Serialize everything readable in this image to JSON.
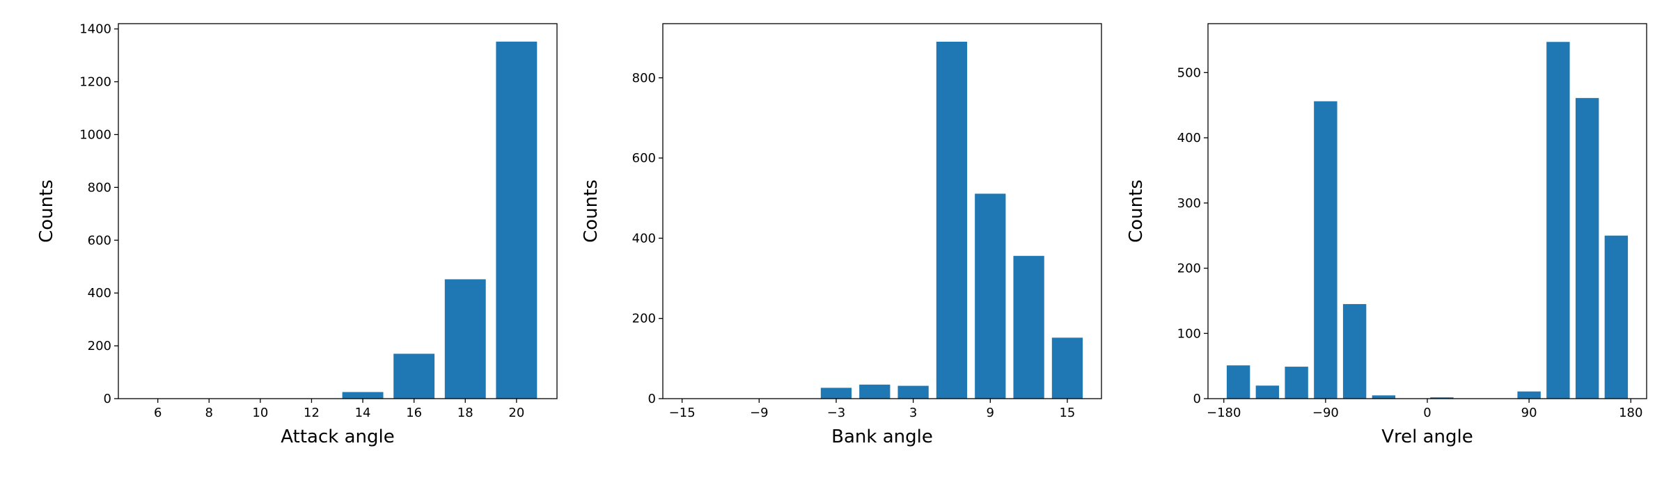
{
  "chart_data": [
    {
      "type": "bar",
      "xlabel": "Attack angle",
      "ylabel": "Counts",
      "color": "#1f77b4",
      "bar_width": 1.6,
      "x": [
        6,
        8,
        10,
        12,
        14,
        16,
        18,
        20
      ],
      "values": [
        0,
        0,
        0,
        0,
        25,
        170,
        452,
        1352
      ],
      "xlim": [
        4.46,
        21.58
      ],
      "ylim": [
        0,
        1420
      ],
      "xticks": [
        6,
        8,
        10,
        12,
        14,
        16,
        18,
        20
      ],
      "yticks": [
        0,
        200,
        400,
        600,
        800,
        1000,
        1200,
        1400
      ]
    },
    {
      "type": "bar",
      "xlabel": "Bank angle",
      "ylabel": "Counts",
      "color": "#1f77b4",
      "bar_width": 2.4,
      "x": [
        -15,
        -12,
        -9,
        -6,
        -3,
        0,
        3,
        6,
        9,
        12,
        15
      ],
      "values": [
        0,
        0,
        0,
        0,
        27,
        35,
        32,
        890,
        511,
        356,
        152
      ],
      "xlim": [
        -16.5,
        17.66
      ],
      "ylim": [
        0,
        935
      ],
      "xticks": [
        {
          "value": -15,
          "label": "−15"
        },
        {
          "value": -9,
          "label": "−9"
        },
        {
          "value": -3,
          "label": "−3"
        },
        3,
        9,
        15
      ],
      "yticks": [
        0,
        200,
        400,
        600,
        800
      ]
    },
    {
      "type": "bar",
      "xlabel": "Vrel angle",
      "ylabel": "Counts",
      "color": "#1f77b4",
      "bar_width": 20.57,
      "x": [
        -167.14,
        -141.43,
        -115.71,
        -90,
        -64.29,
        -38.57,
        -12.86,
        12.86,
        38.57,
        64.29,
        90,
        115.71,
        141.43,
        167.14
      ],
      "values": [
        51,
        20,
        49,
        456,
        145,
        5,
        0,
        2,
        0,
        0,
        11,
        547,
        461,
        250
      ],
      "xlim": [
        -194,
        194
      ],
      "ylim": [
        0,
        575
      ],
      "xticks": [
        {
          "value": -180,
          "label": "−180"
        },
        {
          "value": -90,
          "label": "−90"
        },
        0,
        90,
        180
      ],
      "yticks": [
        0,
        100,
        200,
        300,
        400,
        500
      ]
    }
  ]
}
